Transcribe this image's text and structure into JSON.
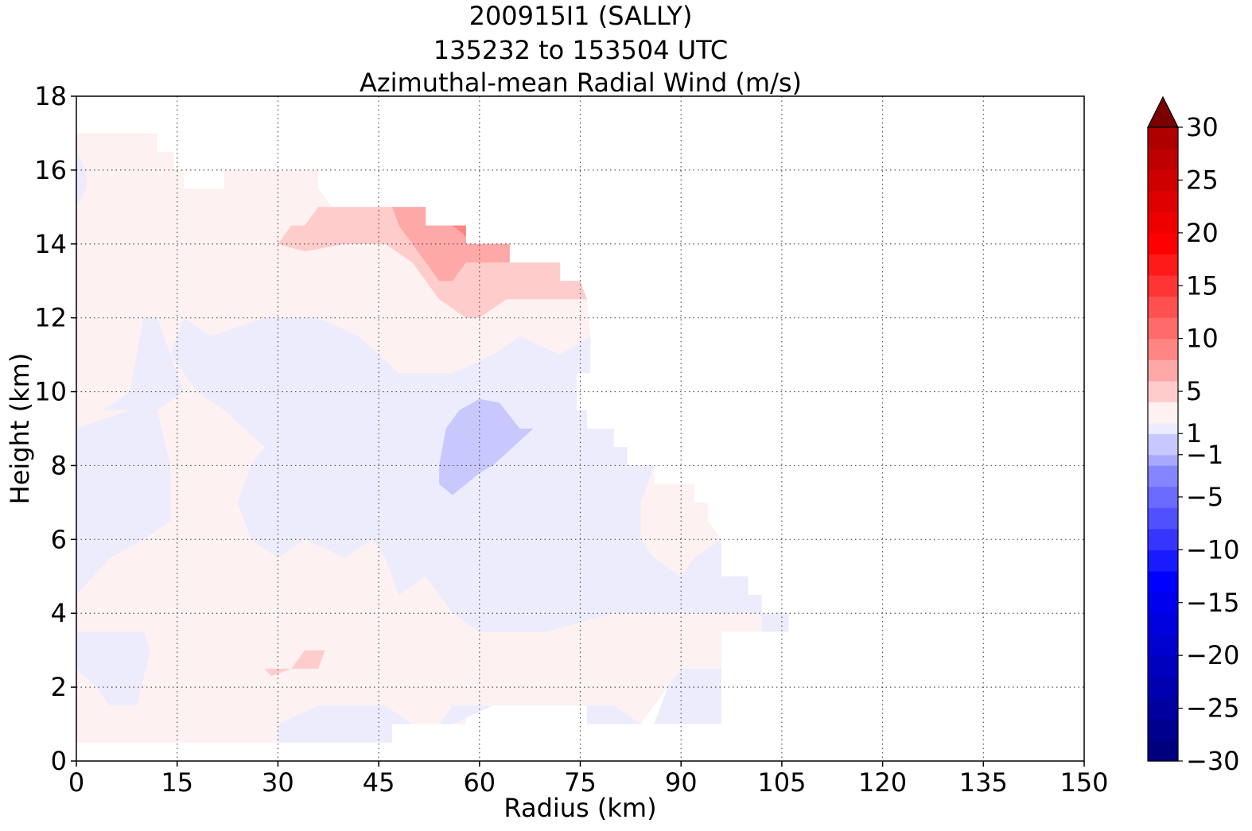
{
  "chart_data": {
    "type": "heatmap",
    "subtype": "filled-contour",
    "title_lines": [
      "200915I1 (SALLY)",
      "135232 to 153504 UTC",
      "Azimuthal-mean Radial Wind (m/s)"
    ],
    "xlabel": "Radius (km)",
    "ylabel": "Height (km)",
    "xlim": [
      0,
      150
    ],
    "ylim": [
      0,
      18
    ],
    "xticks": [
      0,
      15,
      30,
      45,
      60,
      75,
      90,
      105,
      120,
      135,
      150
    ],
    "yticks": [
      0,
      2,
      4,
      6,
      8,
      10,
      12,
      14,
      16,
      18
    ],
    "grid": "dotted",
    "colorbar": {
      "position": "right",
      "extend": "max",
      "range": [
        -30,
        30
      ],
      "tick_labels": [
        "30",
        "25",
        "20",
        "15",
        "10",
        "5",
        "1",
        "−1",
        "−5",
        "−10",
        "−15",
        "−20",
        "−25",
        "−30"
      ],
      "tick_values": [
        30,
        25,
        20,
        15,
        10,
        5,
        1,
        -1,
        -5,
        -10,
        -15,
        -20,
        -25,
        -30
      ],
      "levels": [
        -30,
        -28,
        -26,
        -24,
        -22,
        -20,
        -18,
        -16,
        -14,
        -12,
        -10,
        -8,
        -6,
        -4,
        -2,
        -1,
        1,
        2,
        4,
        6,
        8,
        10,
        12,
        14,
        16,
        18,
        20,
        22,
        24,
        26,
        28,
        30
      ],
      "colors": [
        "#00007f",
        "#00008f",
        "#00009f",
        "#0000af",
        "#0000bf",
        "#0000cf",
        "#0000df",
        "#0000ef",
        "#0000ff",
        "#1a1aff",
        "#3535ff",
        "#5050ff",
        "#6a6aff",
        "#8585ff",
        "#a8a8ff",
        "#c8c8ff",
        "#ececfd",
        "#fdf1f1",
        "#ffcccc",
        "#ffa8a8",
        "#ff8585",
        "#ff6a6a",
        "#ff5050",
        "#ff3535",
        "#ff1a1a",
        "#ff0000",
        "#ef0000",
        "#df0000",
        "#cf0000",
        "#bf0000",
        "#af0000",
        "#900000"
      ],
      "extend_color": "#7a0000"
    },
    "regions": [
      {
        "name": "weak outflow (1 to 2 m/s)",
        "color": "#fdf1f1",
        "polygon": [
          [
            0,
            17
          ],
          [
            12,
            17
          ],
          [
            12,
            16.5
          ],
          [
            14.5,
            16.5
          ],
          [
            14.5,
            16
          ],
          [
            16,
            16
          ],
          [
            16,
            15.5
          ],
          [
            22,
            15.5
          ],
          [
            22,
            16
          ],
          [
            36,
            16
          ],
          [
            36,
            15.5
          ],
          [
            38,
            15
          ],
          [
            52,
            15
          ],
          [
            52,
            14.5
          ],
          [
            58,
            14.5
          ],
          [
            58,
            14
          ],
          [
            64.5,
            14
          ],
          [
            64.5,
            13.5
          ],
          [
            72,
            13.5
          ],
          [
            72,
            13
          ],
          [
            75,
            13
          ],
          [
            76,
            12.5
          ],
          [
            76.5,
            11.5
          ],
          [
            76.5,
            10.5
          ],
          [
            74.5,
            10.5
          ],
          [
            74.5,
            9.5
          ],
          [
            76,
            9.5
          ],
          [
            76,
            9
          ],
          [
            80,
            9
          ],
          [
            80,
            8.5
          ],
          [
            82,
            8.5
          ],
          [
            82,
            8
          ],
          [
            86,
            8
          ],
          [
            86,
            7.5
          ],
          [
            92,
            7.5
          ],
          [
            92,
            7
          ],
          [
            94,
            7
          ],
          [
            94,
            6.5
          ],
          [
            96,
            6
          ],
          [
            96,
            5
          ],
          [
            100,
            5
          ],
          [
            100,
            4.5
          ],
          [
            102,
            4.5
          ],
          [
            102,
            3.5
          ],
          [
            96,
            3.5
          ],
          [
            96,
            2.5
          ],
          [
            90,
            2.5
          ],
          [
            88,
            2
          ],
          [
            86,
            1.5
          ],
          [
            84,
            1
          ],
          [
            76,
            1
          ],
          [
            76,
            1.5
          ],
          [
            58,
            1.5
          ],
          [
            58,
            1
          ],
          [
            47,
            1
          ],
          [
            47,
            0.5
          ],
          [
            0,
            0.5
          ]
        ]
      },
      {
        "name": "weak inflow (-2 to -1 m/s)",
        "color": "#ececfd",
        "polygon": [
          [
            20,
            11.5
          ],
          [
            28,
            12
          ],
          [
            36,
            12
          ],
          [
            42,
            11.5
          ],
          [
            48,
            10.5
          ],
          [
            56,
            10.5
          ],
          [
            62,
            11
          ],
          [
            66,
            11.5
          ],
          [
            72,
            11
          ],
          [
            76.5,
            11.5
          ],
          [
            76.5,
            10.5
          ],
          [
            74.5,
            10.5
          ],
          [
            74.5,
            9.5
          ],
          [
            76,
            9.5
          ],
          [
            76,
            9
          ],
          [
            80,
            9
          ],
          [
            80,
            8.5
          ],
          [
            82,
            8.5
          ],
          [
            82,
            8
          ],
          [
            86,
            8
          ],
          [
            84,
            7
          ],
          [
            84,
            6
          ],
          [
            86,
            5.5
          ],
          [
            90,
            5
          ],
          [
            92,
            5.5
          ],
          [
            96,
            6
          ],
          [
            96,
            5
          ],
          [
            100,
            5
          ],
          [
            100,
            4.5
          ],
          [
            102,
            4.5
          ],
          [
            102,
            3.5
          ],
          [
            106,
            3.5
          ],
          [
            106,
            4
          ],
          [
            96,
            4
          ],
          [
            80,
            4
          ],
          [
            70,
            3.5
          ],
          [
            60,
            3.5
          ],
          [
            56,
            4
          ],
          [
            52,
            5
          ],
          [
            48,
            4.5
          ],
          [
            46,
            5.5
          ],
          [
            44,
            6
          ],
          [
            40,
            5.5
          ],
          [
            34,
            6
          ],
          [
            30,
            5.5
          ],
          [
            26,
            6
          ],
          [
            24,
            7
          ],
          [
            26,
            8
          ],
          [
            28,
            8.5
          ],
          [
            22,
            9.5
          ],
          [
            18,
            10
          ],
          [
            16,
            10.5
          ],
          [
            14,
            11
          ],
          [
            16,
            12
          ]
        ]
      },
      {
        "name": "weak inflow (-2 to -1 m/s)",
        "color": "#ececfd",
        "polygon": [
          [
            0,
            9.5
          ],
          [
            4,
            9.5
          ],
          [
            8,
            9.5
          ],
          [
            12,
            9.5
          ],
          [
            16,
            10
          ],
          [
            14,
            11
          ],
          [
            12,
            12
          ],
          [
            10,
            12
          ],
          [
            8,
            10
          ],
          [
            4,
            9.5
          ]
        ]
      },
      {
        "name": "weak inflow (-2 to -1 m/s)",
        "color": "#ececfd",
        "polygon": [
          [
            0,
            9
          ],
          [
            8,
            9.5
          ],
          [
            12,
            9.5
          ],
          [
            14,
            8
          ],
          [
            14,
            6.5
          ],
          [
            10,
            6
          ],
          [
            5,
            5.5
          ],
          [
            0,
            4.5
          ]
        ]
      },
      {
        "name": "weak inflow (-2 to -1 m/s)",
        "color": "#ececfd",
        "polygon": [
          [
            0,
            3.5
          ],
          [
            5,
            3.5
          ],
          [
            10,
            3.5
          ],
          [
            11,
            3
          ],
          [
            9,
            1.5
          ],
          [
            5,
            1.5
          ],
          [
            3,
            2
          ],
          [
            0,
            2.5
          ]
        ]
      },
      {
        "name": "weak inflow (-2 to -1 m/s)",
        "color": "#ececfd",
        "polygon": [
          [
            30,
            1
          ],
          [
            36,
            1.5
          ],
          [
            46,
            1.5
          ],
          [
            50,
            1
          ],
          [
            56,
            1
          ],
          [
            62,
            1.5
          ],
          [
            76,
            1.5
          ],
          [
            76,
            1
          ],
          [
            86,
            1
          ],
          [
            88,
            2
          ],
          [
            90,
            2.5
          ],
          [
            96,
            2.5
          ],
          [
            96,
            1
          ],
          [
            84,
            1
          ],
          [
            80,
            1.5
          ],
          [
            74,
            1.5
          ],
          [
            66,
            1.5
          ],
          [
            56,
            1.5
          ],
          [
            54,
            1
          ],
          [
            47,
            1
          ],
          [
            47,
            0.5
          ],
          [
            30,
            0.5
          ]
        ]
      },
      {
        "name": "weak inflow (-2 to -1 m/s)",
        "color": "#ececfd",
        "polygon": [
          [
            0,
            16.5
          ],
          [
            1.5,
            16
          ],
          [
            1.5,
            15.5
          ],
          [
            0,
            15
          ]
        ]
      },
      {
        "name": "inflow (-4 to -2 m/s)",
        "color": "#c8c8ff",
        "polygon": [
          [
            54,
            8
          ],
          [
            55,
            9
          ],
          [
            57,
            9.5
          ],
          [
            60,
            9.8
          ],
          [
            63,
            9.7
          ],
          [
            66,
            9
          ],
          [
            68,
            9
          ],
          [
            65,
            8.5
          ],
          [
            62,
            8
          ],
          [
            60,
            7.8
          ],
          [
            58,
            7.5
          ],
          [
            56,
            7.2
          ],
          [
            54,
            7.5
          ]
        ]
      },
      {
        "name": "outflow (2 to 4 m/s)",
        "color": "#ffcccc",
        "polygon": [
          [
            30,
            14
          ],
          [
            32,
            14.5
          ],
          [
            34,
            14.5
          ],
          [
            36,
            15
          ],
          [
            46,
            15
          ],
          [
            52,
            15
          ],
          [
            52,
            14.5
          ],
          [
            58,
            14.5
          ],
          [
            58,
            14
          ],
          [
            64.5,
            14
          ],
          [
            64.5,
            13.5
          ],
          [
            72,
            13.5
          ],
          [
            72,
            13
          ],
          [
            75,
            13
          ],
          [
            76,
            12.5
          ],
          [
            74,
            12.5
          ],
          [
            70,
            12.5
          ],
          [
            64,
            12.5
          ],
          [
            60,
            12
          ],
          [
            58,
            12
          ],
          [
            54,
            12.5
          ],
          [
            50,
            13.5
          ],
          [
            46,
            14
          ],
          [
            40,
            14
          ],
          [
            34,
            13.8
          ]
        ]
      },
      {
        "name": "outflow (2 to 4 m/s)",
        "color": "#ffcccc",
        "polygon": [
          [
            28,
            2.5
          ],
          [
            30,
            2.5
          ],
          [
            32,
            2.5
          ],
          [
            34,
            3
          ],
          [
            36,
            3
          ],
          [
            37,
            3
          ],
          [
            36,
            2.5
          ],
          [
            32,
            2.5
          ],
          [
            29,
            2.3
          ]
        ]
      },
      {
        "name": "outflow (4 to 6 m/s)",
        "color": "#ffa8a8",
        "polygon": [
          [
            47,
            15
          ],
          [
            52,
            15
          ],
          [
            52,
            14.5
          ],
          [
            58,
            14.5
          ],
          [
            58,
            14
          ],
          [
            64.5,
            14
          ],
          [
            64.5,
            13.5
          ],
          [
            60,
            13.5
          ],
          [
            58,
            13.5
          ],
          [
            56,
            13
          ],
          [
            54,
            13
          ],
          [
            50,
            14
          ],
          [
            48,
            14.5
          ]
        ]
      },
      {
        "name": "outflow (6 to 8 m/s)",
        "color": "#ff8585",
        "polygon": [
          [
            56,
            14.5
          ],
          [
            58,
            14.5
          ],
          [
            58,
            14.2
          ]
        ]
      }
    ]
  }
}
